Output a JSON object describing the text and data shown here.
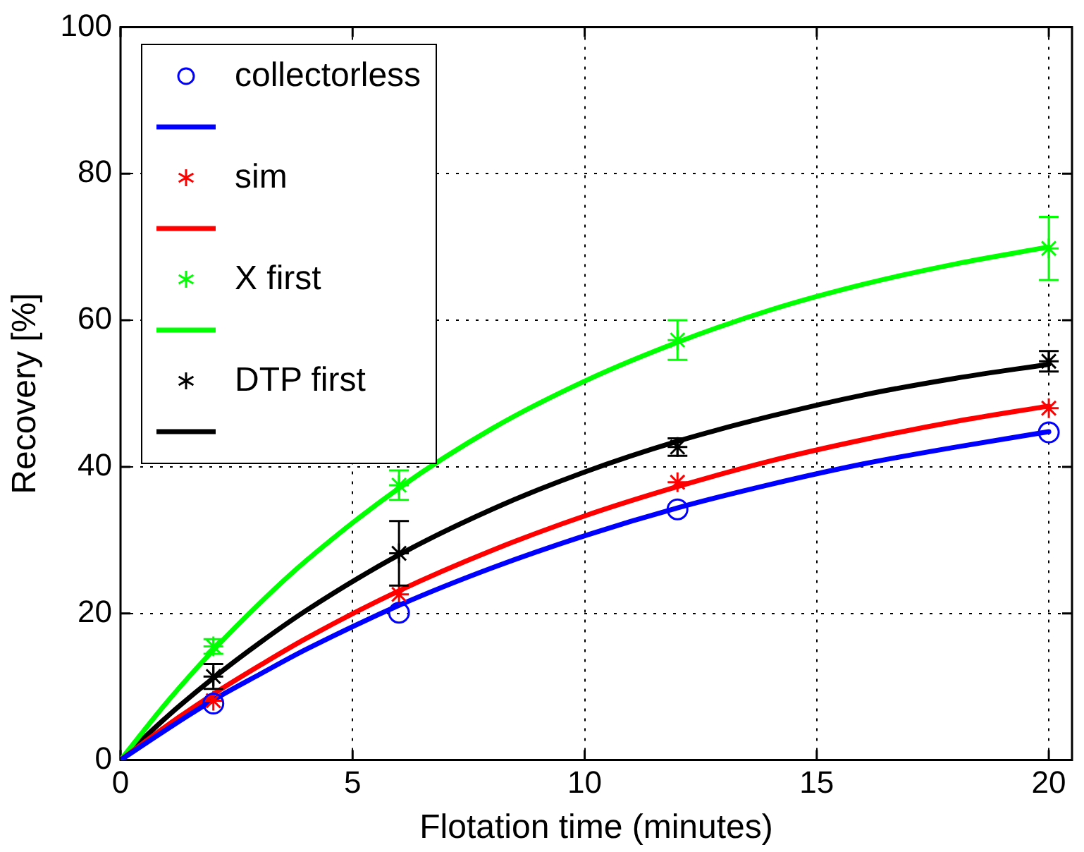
{
  "chart_data": {
    "type": "scatter",
    "xlabel": "Flotation time (minutes)",
    "ylabel": "Recovery [%]",
    "xlim": [
      0,
      20.5
    ],
    "xticks": [
      0,
      5,
      10,
      15,
      20
    ],
    "ylim": [
      0,
      100
    ],
    "yticks": [
      0,
      20,
      40,
      60,
      80,
      100
    ],
    "grid": true,
    "legend": "top left",
    "series": [
      {
        "name": "collectorless",
        "type": "scatter",
        "marker": "circle",
        "color": "#0000ff",
        "x": [
          2,
          6,
          12,
          20
        ],
        "values": [
          7.7,
          20.1,
          34.2,
          44.7
        ]
      },
      {
        "type": "line",
        "marker": "none",
        "color": "#0000ff",
        "x": [
          0,
          1,
          2,
          3,
          4,
          6,
          8,
          10,
          12,
          14,
          16,
          18,
          20
        ],
        "values": [
          0,
          4.2,
          8.2,
          11.7,
          15.1,
          21.1,
          26.2,
          30.6,
          34.4,
          37.6,
          40.4,
          42.7,
          44.8
        ]
      },
      {
        "name": "sim",
        "type": "scatter",
        "marker": "cross",
        "color": "#ff0000",
        "x": [
          2,
          6,
          12,
          20
        ],
        "values": [
          8.1,
          22.6,
          37.9,
          48.0
        ]
      },
      {
        "type": "line",
        "marker": "none",
        "color": "#ff0000",
        "x": [
          0,
          1,
          2,
          3,
          4,
          6,
          8,
          10,
          12,
          14,
          16,
          18,
          20
        ],
        "values": [
          0,
          4.7,
          9.0,
          12.9,
          16.6,
          23.1,
          28.6,
          33.3,
          37.3,
          40.8,
          43.7,
          46.2,
          48.3
        ]
      },
      {
        "name": "X first",
        "type": "scatter",
        "marker": "cross",
        "color": "#00ff00",
        "x": [
          2,
          6,
          12,
          20
        ],
        "values": [
          15.5,
          37.5,
          57.3,
          69.8
        ],
        "errors": [
          1,
          2,
          2.7,
          4.3
        ]
      },
      {
        "type": "line",
        "marker": "none",
        "color": "#00ff00",
        "x": [
          0,
          1,
          2,
          3,
          4,
          6,
          8,
          10,
          12,
          14,
          16,
          18,
          20
        ],
        "values": [
          0,
          7.9,
          15.0,
          21.4,
          27.2,
          37.1,
          45.2,
          51.7,
          57.0,
          61.4,
          64.9,
          67.7,
          70.0
        ]
      },
      {
        "name": "DTP first",
        "type": "scatter",
        "marker": "cross",
        "color": "#000000",
        "x": [
          2,
          6,
          12,
          20
        ],
        "values": [
          11.4,
          28.2,
          42.7,
          54.4
        ],
        "errors": [
          1.7,
          4.4,
          1.2,
          1.4
        ]
      },
      {
        "type": "line",
        "marker": "none",
        "color": "#000000",
        "x": [
          0,
          1,
          2,
          3,
          4,
          6,
          8,
          10,
          12,
          14,
          16,
          18,
          20
        ],
        "values": [
          0,
          5.9,
          11.2,
          16.0,
          20.4,
          28.0,
          34.2,
          39.3,
          43.5,
          46.9,
          49.8,
          52.1,
          54.0
        ]
      }
    ]
  }
}
